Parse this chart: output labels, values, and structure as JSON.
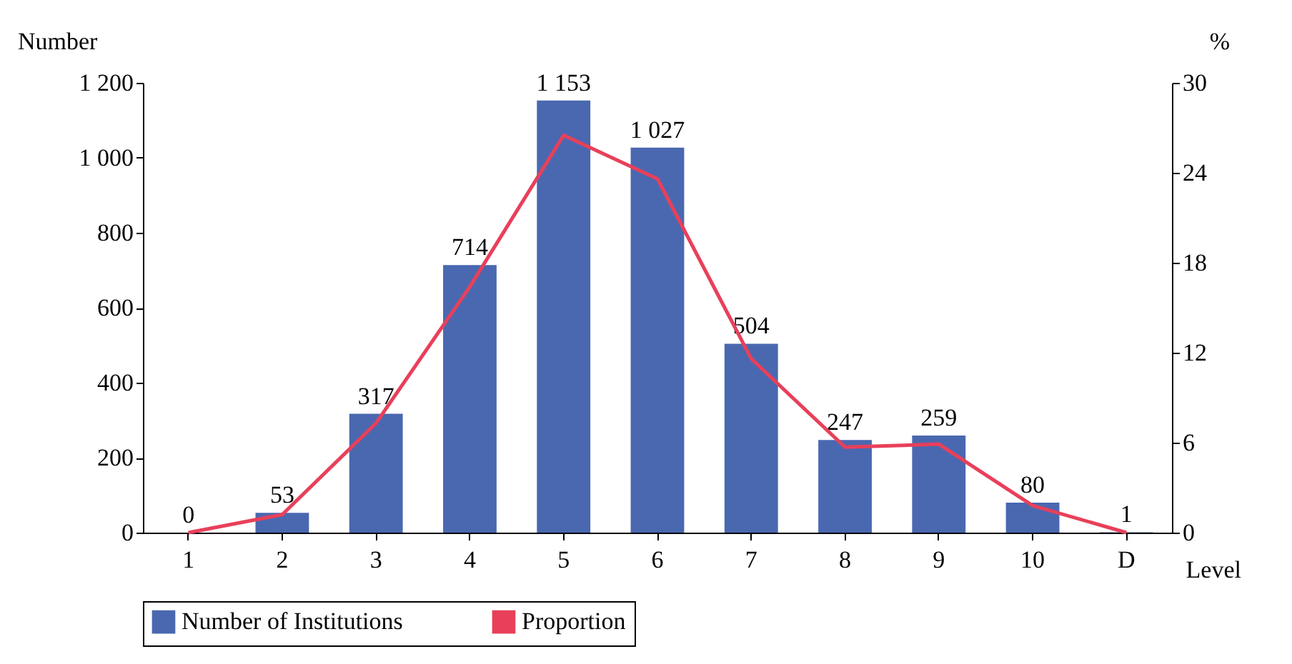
{
  "chart_data": {
    "type": "bar",
    "xlabel": "Level",
    "ylabel": "Number",
    "y2label": "%",
    "categories": [
      "1",
      "2",
      "3",
      "4",
      "5",
      "6",
      "7",
      "8",
      "9",
      "10",
      "D"
    ],
    "series": [
      {
        "name": "Number of Institutions",
        "color": "#4a68b0",
        "values": [
          0,
          53,
          317,
          714,
          1153,
          1027,
          504,
          247,
          259,
          80,
          1
        ],
        "value_labels": [
          "0",
          "53",
          "317",
          "714",
          "1 153",
          "1 027",
          "504",
          "247",
          "259",
          "80",
          "1"
        ]
      },
      {
        "name": "Proportion",
        "type": "line",
        "axis": "y2",
        "color": "#e8405a",
        "values": [
          0,
          1.2,
          7.3,
          16.4,
          26.5,
          23.6,
          11.6,
          5.7,
          5.9,
          1.8,
          0
        ]
      }
    ],
    "ylim": [
      0,
      1200
    ],
    "yticks": [
      0,
      200,
      400,
      600,
      800,
      {
        "value": 1000,
        "label": "1 000"
      },
      {
        "value": 1200,
        "label": "1 200"
      }
    ],
    "y2lim": [
      0,
      30
    ],
    "y2ticks": [
      0,
      6,
      12,
      18,
      24,
      30
    ],
    "legend": "bottom",
    "grid": false
  }
}
